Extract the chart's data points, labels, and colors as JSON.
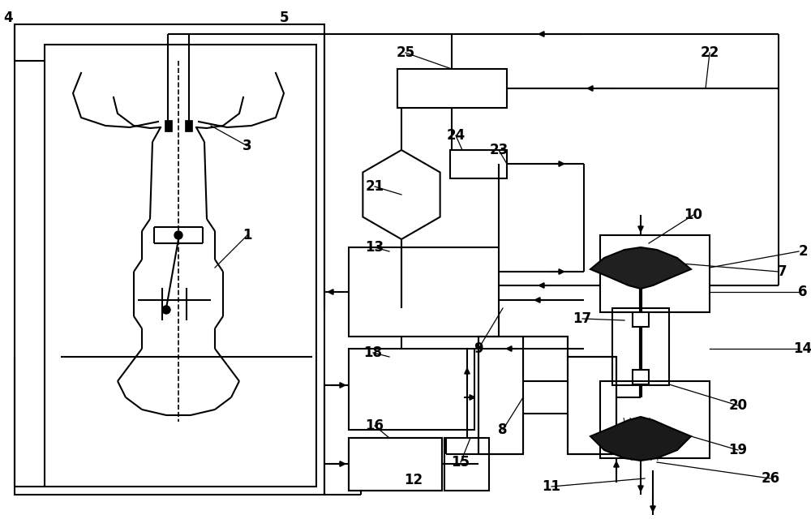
{
  "bg": "#ffffff",
  "lc": "#000000",
  "lw": 1.5
}
